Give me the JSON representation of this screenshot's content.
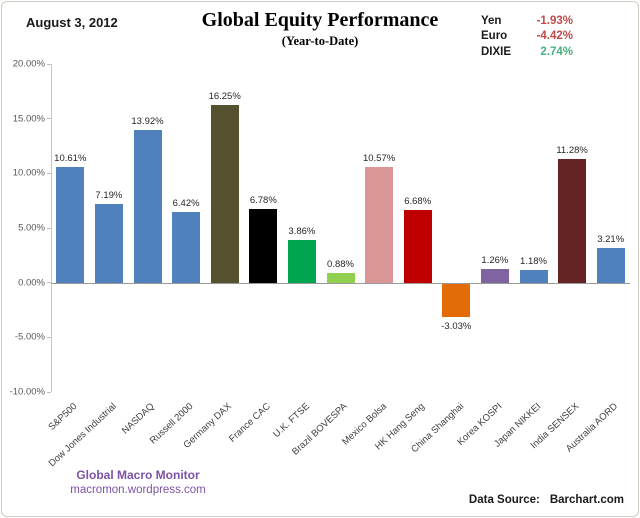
{
  "window": {
    "background": "#FFFFFF",
    "border_color": "#CDCDC3"
  },
  "header": {
    "date": "August 3, 2012",
    "title": "Global Equity Performance",
    "subtitle": "(Year-to-Date)",
    "fx_legend": {
      "items": [
        {
          "label": "Yen",
          "value": "-1.93%",
          "color": "#BE4B48"
        },
        {
          "label": "Euro",
          "value": "-4.42%",
          "color": "#BE4B48"
        },
        {
          "label": "DIXIE",
          "value": "2.74%",
          "color": "#4BAE7E"
        }
      ]
    }
  },
  "chart_data": {
    "type": "bar",
    "title": "Global Equity Performance",
    "subtitle": "(Year-to-Date)",
    "categories": [
      "S&P500",
      "Dow Jones Industrial",
      "NASDAQ",
      "Russell 2000",
      "Germany DAX",
      "France CAC",
      "U.K. FTSE",
      "Brazil BOVESPA",
      "Mexico Bolsa",
      "HK Hang Seng",
      "China Shanghai",
      "Korea KOSPI",
      "Japan NIKKEI",
      "India SENSEX",
      "Australia AORD"
    ],
    "values": [
      10.61,
      7.19,
      13.92,
      6.42,
      16.25,
      6.78,
      3.86,
      0.88,
      10.57,
      6.68,
      -3.03,
      1.26,
      1.18,
      11.28,
      3.21
    ],
    "data_labels": [
      "10.61%",
      "7.19%",
      "13.92%",
      "6.42%",
      "16.25%",
      "6.78%",
      "3.86%",
      "0.88%",
      "10.57%",
      "6.68%",
      "-3.03%",
      "1.26%",
      "1.18%",
      "11.28%",
      "3.21%"
    ],
    "bar_colors": [
      "#4F81BD",
      "#4F81BD",
      "#4F81BD",
      "#4F81BD",
      "#56512F",
      "#000000",
      "#00A550",
      "#92D050",
      "#D99694",
      "#C00000",
      "#E36C09",
      "#8064A2",
      "#4F81BD",
      "#632423",
      "#4F81BD"
    ],
    "xlabel": "",
    "ylabel": "",
    "ylim": [
      -10,
      20
    ],
    "yticks": [
      {
        "value": 20,
        "label": "20.00%"
      },
      {
        "value": 15,
        "label": "15.00%"
      },
      {
        "value": 10,
        "label": "10.00%"
      },
      {
        "value": 5,
        "label": "5.00%"
      },
      {
        "value": 0,
        "label": "0.00%"
      },
      {
        "value": -5,
        "label": "-5.00%"
      },
      {
        "value": -10,
        "label": "-10.00%"
      }
    ],
    "grid": false,
    "legend_position": "none",
    "fx_annotations": [
      {
        "label": "Yen",
        "value": -1.93
      },
      {
        "label": "Euro",
        "value": -4.42
      },
      {
        "label": "DIXIE",
        "value": 2.74
      }
    ]
  },
  "footer": {
    "brand_line1": "Global Macro Monitor",
    "brand_line2": "macromon.wordpress.com",
    "source_label": "Data Source:",
    "source_value": "Barchart.com"
  }
}
